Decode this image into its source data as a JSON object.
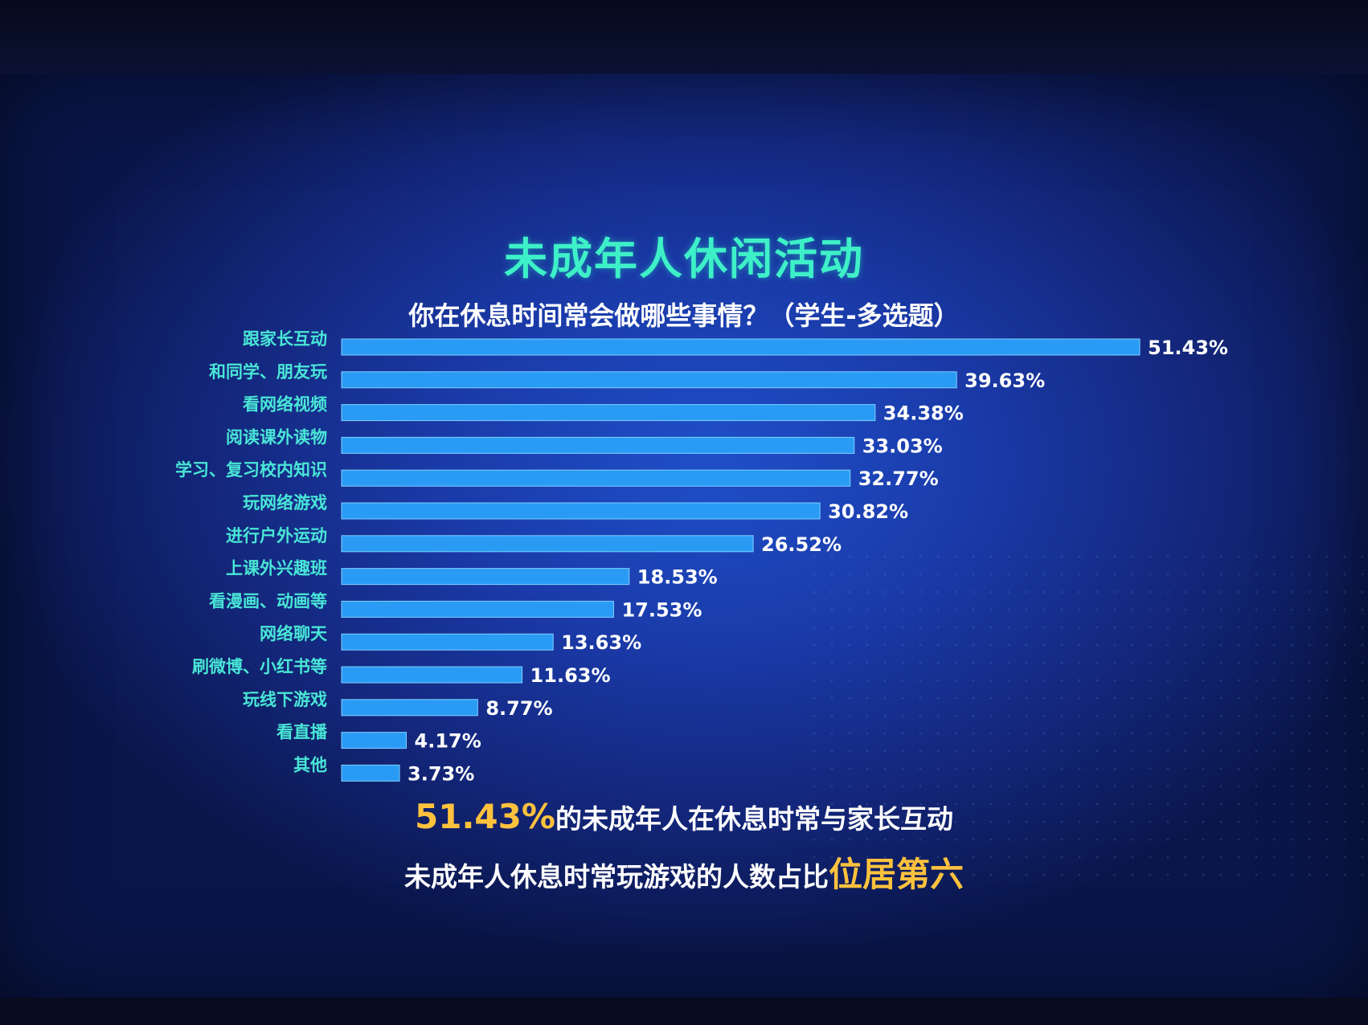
{
  "header": {
    "title": "未成年人休闲活动",
    "subtitle": "你在休息时间常会做哪些事情？（学生-多选题）"
  },
  "summary": {
    "line1_highlight": "51.43%",
    "line1_text": "的未成年人在休息时常与家长互动",
    "line2_text": "未成年人休息时常玩游戏的人数占比",
    "line2_highlight": "位居第六"
  },
  "colors": {
    "bar": "#2a9bf5",
    "title": "#3ef0c8",
    "category_label": "#49e6d6",
    "highlight": "#ffc23d",
    "background": "#1a3aa8"
  },
  "chart_data": {
    "type": "bar",
    "orientation": "horizontal",
    "title": "未成年人休闲活动",
    "subtitle": "你在休息时间常会做哪些事情？（学生-多选题）",
    "categories": [
      "跟家长互动",
      "和同学、朋友玩",
      "看网络视频",
      "阅读课外读物",
      "学习、复习校内知识",
      "玩网络游戏",
      "进行户外运动",
      "上课外兴趣班",
      "看漫画、动画等",
      "网络聊天",
      "刷微博、小红书等",
      "玩线下游戏",
      "看直播",
      "其他"
    ],
    "values": [
      51.43,
      39.63,
      34.38,
      33.03,
      32.77,
      30.82,
      26.52,
      18.53,
      17.53,
      13.63,
      11.63,
      8.77,
      4.17,
      3.73
    ],
    "value_labels": [
      "51.43%",
      "39.63%",
      "34.38%",
      "33.03%",
      "32.77%",
      "30.82%",
      "26.52%",
      "18.53%",
      "17.53%",
      "13.63%",
      "11.63%",
      "8.77%",
      "4.17%",
      "3.73%"
    ],
    "unit": "%",
    "xlim": [
      0,
      51.43
    ],
    "grid": false,
    "legend": "none"
  }
}
